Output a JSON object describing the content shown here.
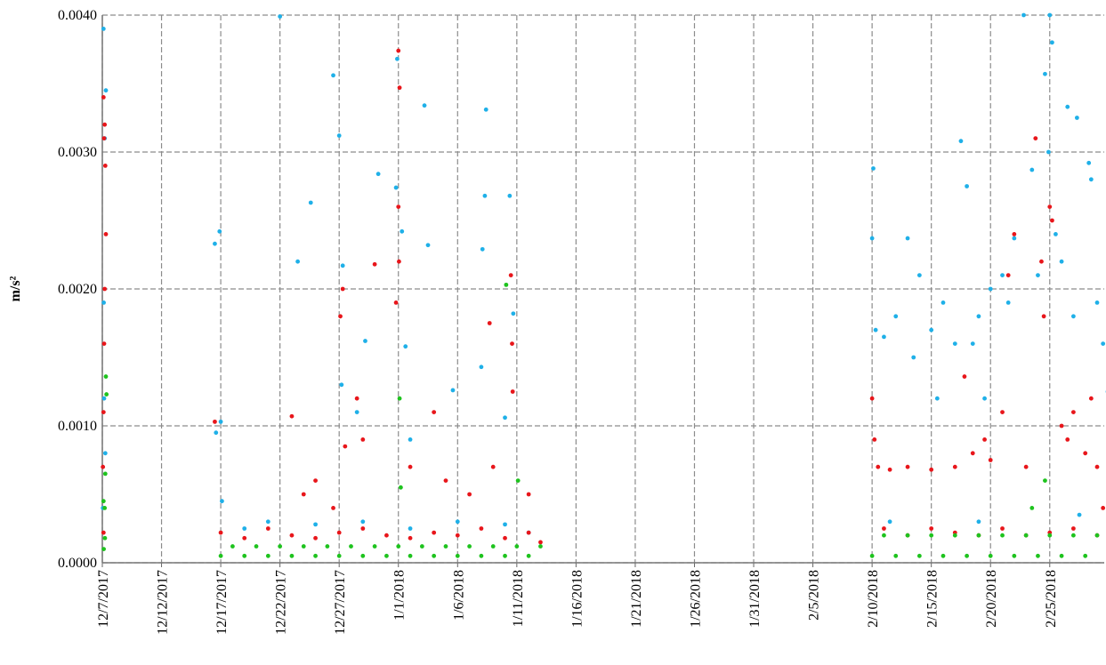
{
  "chart_data": {
    "type": "scatter",
    "y_label": "m/s²",
    "xlim": [
      43076,
      43160.6
    ],
    "xticks": [
      {
        "value": 43076,
        "label": "12/7/2017"
      },
      {
        "value": 43081,
        "label": "12/12/2017"
      },
      {
        "value": 43086,
        "label": "12/17/2017"
      },
      {
        "value": 43091,
        "label": "12/22/2017"
      },
      {
        "value": 43096,
        "label": "12/27/2017"
      },
      {
        "value": 43101,
        "label": "1/1/2018"
      },
      {
        "value": 43106,
        "label": "1/6/2018"
      },
      {
        "value": 43111,
        "label": "1/11/2018"
      },
      {
        "value": 43116,
        "label": "1/16/2018"
      },
      {
        "value": 43121,
        "label": "1/21/2018"
      },
      {
        "value": 43126,
        "label": "1/26/2018"
      },
      {
        "value": 43131,
        "label": "1/31/2018"
      },
      {
        "value": 43136,
        "label": "2/5/2018"
      },
      {
        "value": 43141,
        "label": "2/10/2018"
      },
      {
        "value": 43146,
        "label": "2/15/2018"
      },
      {
        "value": 43151,
        "label": "2/20/2018"
      },
      {
        "value": 43156,
        "label": "2/25/2018"
      }
    ],
    "ylim": [
      0,
      0.004
    ],
    "yticks": [
      {
        "value": 0,
        "label": "0.0000"
      },
      {
        "value": 0.001,
        "label": "0.0010"
      },
      {
        "value": 0.002,
        "label": "0.0020"
      },
      {
        "value": 0.003,
        "label": "0.0030"
      },
      {
        "value": 0.004,
        "label": "0.0040"
      }
    ],
    "grid": true,
    "series": [
      {
        "color": "#1fb0e8",
        "x": [
          43076.1,
          43076.2,
          43076.3,
          43076.15,
          43076.05,
          43076.25,
          43076.12,
          43085.5,
          43085.9,
          43085.6,
          43086,
          43086.1,
          43091,
          43092.5,
          43093.6,
          43095.5,
          43096,
          43096.3,
          43096.2,
          43097.5,
          43098.2,
          43099.3,
          43100.8,
          43100.9,
          43101.3,
          43101.6,
          43103.2,
          43103.5,
          43108.1,
          43108.3,
          43108.4,
          43108,
          43110.4,
          43110.7,
          43110,
          43105.6,
          43102,
          43088,
          43090,
          43094,
          43098,
          43102,
          43106,
          43110,
          43112,
          43141.1,
          43141,
          43141.3,
          43142,
          43143,
          43144,
          43145,
          43146,
          43147,
          43148,
          43148.5,
          43149,
          43150,
          43150.5,
          43151,
          43152,
          43153,
          43153.8,
          43154.5,
          43155,
          43155.6,
          43155.9,
          43156,
          43156.2,
          43156.5,
          43157.5,
          43158.3,
          43159.3,
          43159.5,
          43160,
          43160.5,
          43160.9,
          43152.5,
          43144.5,
          43146.5,
          43149.5,
          43157,
          43158,
          43142.5,
          43150,
          43158.5
        ],
        "values": [
          0.0039,
          0.0031,
          0.00345,
          0.0012,
          0.0004,
          0.0008,
          0.0019,
          0.00233,
          0.00242,
          0.00095,
          0.00103,
          0.00045,
          0.00399,
          0.0022,
          0.00263,
          0.00356,
          0.00312,
          0.00217,
          0.0013,
          0.0011,
          0.00162,
          0.00284,
          0.00274,
          0.00368,
          0.00242,
          0.00158,
          0.00334,
          0.00232,
          0.00229,
          0.00268,
          0.00331,
          0.00143,
          0.00268,
          0.00182,
          0.00106,
          0.00126,
          0.0009,
          0.00025,
          0.0003,
          0.00028,
          0.0003,
          0.00025,
          0.0003,
          0.00028,
          0.00022,
          0.00288,
          0.00237,
          0.0017,
          0.00165,
          0.0018,
          0.00237,
          0.0021,
          0.0017,
          0.0019,
          0.0016,
          0.00308,
          0.00275,
          0.0018,
          0.0012,
          0.002,
          0.0021,
          0.00237,
          0.004,
          0.00287,
          0.0021,
          0.00357,
          0.003,
          0.004,
          0.0038,
          0.0024,
          0.00333,
          0.00325,
          0.00292,
          0.0028,
          0.0019,
          0.0016,
          0.00125,
          0.0019,
          0.0015,
          0.0012,
          0.0016,
          0.0022,
          0.0018,
          0.0003,
          0.0003,
          0.00035
        ]
      },
      {
        "color": "#e8161b",
        "x": [
          43076.1,
          43076.15,
          43076.2,
          43076.25,
          43076.3,
          43076.2,
          43076.15,
          43076.1,
          43076.05,
          43076.1,
          43085.5,
          43092,
          43093,
          43094,
          43095.5,
          43096.1,
          43096.3,
          43096.5,
          43097.5,
          43098,
          43099,
          43101,
          43101.1,
          43101,
          43101.05,
          43100.8,
          43102,
          43104,
          43105,
          43107,
          43108.7,
          43110.5,
          43110.6,
          43110.65,
          43109,
          43112,
          43086,
          43088,
          43090,
          43092,
          43094,
          43096,
          43098,
          43100,
          43102,
          43104,
          43106,
          43108,
          43110,
          43112,
          43113,
          43141,
          43141.2,
          43141.5,
          43142.5,
          43144,
          43146,
          43148,
          43148.8,
          43149.5,
          43150.5,
          43151,
          43152,
          43152.5,
          43153,
          43154,
          43154.8,
          43155.3,
          43155.5,
          43156,
          43156.2,
          43157,
          43157.5,
          43158,
          43159,
          43159.5,
          43160,
          43160.5,
          43142,
          43144,
          43146,
          43148,
          43150,
          43152,
          43154,
          43156,
          43158,
          43160
        ],
        "values": [
          0.0034,
          0.0031,
          0.0032,
          0.0029,
          0.0024,
          0.002,
          0.0016,
          0.0011,
          0.0007,
          0.00022,
          0.00103,
          0.00107,
          0.0005,
          0.0006,
          0.0004,
          0.0018,
          0.002,
          0.00085,
          0.0012,
          0.0009,
          0.00218,
          0.00374,
          0.00347,
          0.0026,
          0.0022,
          0.0019,
          0.0007,
          0.0011,
          0.0006,
          0.0005,
          0.00175,
          0.0021,
          0.0016,
          0.00125,
          0.0007,
          0.0005,
          0.00022,
          0.00018,
          0.00025,
          0.0002,
          0.00018,
          0.00022,
          0.00025,
          0.0002,
          0.00018,
          0.00022,
          0.0002,
          0.00025,
          0.00018,
          0.00022,
          0.00015,
          0.0012,
          0.0009,
          0.0007,
          0.00068,
          0.0007,
          0.00068,
          0.0007,
          0.00136,
          0.0008,
          0.0009,
          0.00075,
          0.0011,
          0.0021,
          0.0024,
          0.0007,
          0.0031,
          0.0022,
          0.0018,
          0.0026,
          0.0025,
          0.001,
          0.0009,
          0.0011,
          0.0008,
          0.0012,
          0.0007,
          0.0004,
          0.00025,
          0.0002,
          0.00025,
          0.00022,
          0.0002,
          0.00025,
          0.0002,
          0.00022,
          0.00025,
          0.0002
        ]
      },
      {
        "color": "#1ec31e",
        "x": [
          43076.1,
          43076.2,
          43076.3,
          43076.35,
          43076.25,
          43076.12,
          43076.22,
          43086,
          43087,
          43088,
          43089,
          43090,
          43091,
          43092,
          43093,
          43094,
          43095,
          43096,
          43097,
          43098,
          43099,
          43100,
          43101,
          43102,
          43103,
          43104,
          43105,
          43106,
          43107,
          43108,
          43109,
          43110,
          43111,
          43112,
          43113,
          43101.1,
          43101.2,
          43110.1,
          43111.1,
          43141,
          43142,
          43143,
          43144,
          43145,
          43146,
          43147,
          43148,
          43149,
          43150,
          43151,
          43152,
          43153,
          43154,
          43155,
          43156,
          43157,
          43158,
          43159,
          43160,
          43155.6,
          43154.5
        ],
        "values": [
          0.00045,
          0.0004,
          0.00136,
          0.00123,
          0.00065,
          0.0001,
          0.00018,
          5e-05,
          0.00012,
          5e-05,
          0.00012,
          5e-05,
          0.00012,
          5e-05,
          0.00012,
          5e-05,
          0.00012,
          5e-05,
          0.00012,
          5e-05,
          0.00012,
          5e-05,
          0.00012,
          5e-05,
          0.00012,
          5e-05,
          0.00012,
          5e-05,
          0.00012,
          5e-05,
          0.00012,
          5e-05,
          0.00012,
          5e-05,
          0.00012,
          0.0012,
          0.00055,
          0.00203,
          0.0006,
          5e-05,
          0.0002,
          5e-05,
          0.0002,
          5e-05,
          0.0002,
          5e-05,
          0.0002,
          5e-05,
          0.0002,
          5e-05,
          0.0002,
          5e-05,
          0.0002,
          5e-05,
          0.0002,
          5e-05,
          0.0002,
          5e-05,
          0.0002,
          0.0006,
          0.0004
        ]
      }
    ]
  }
}
